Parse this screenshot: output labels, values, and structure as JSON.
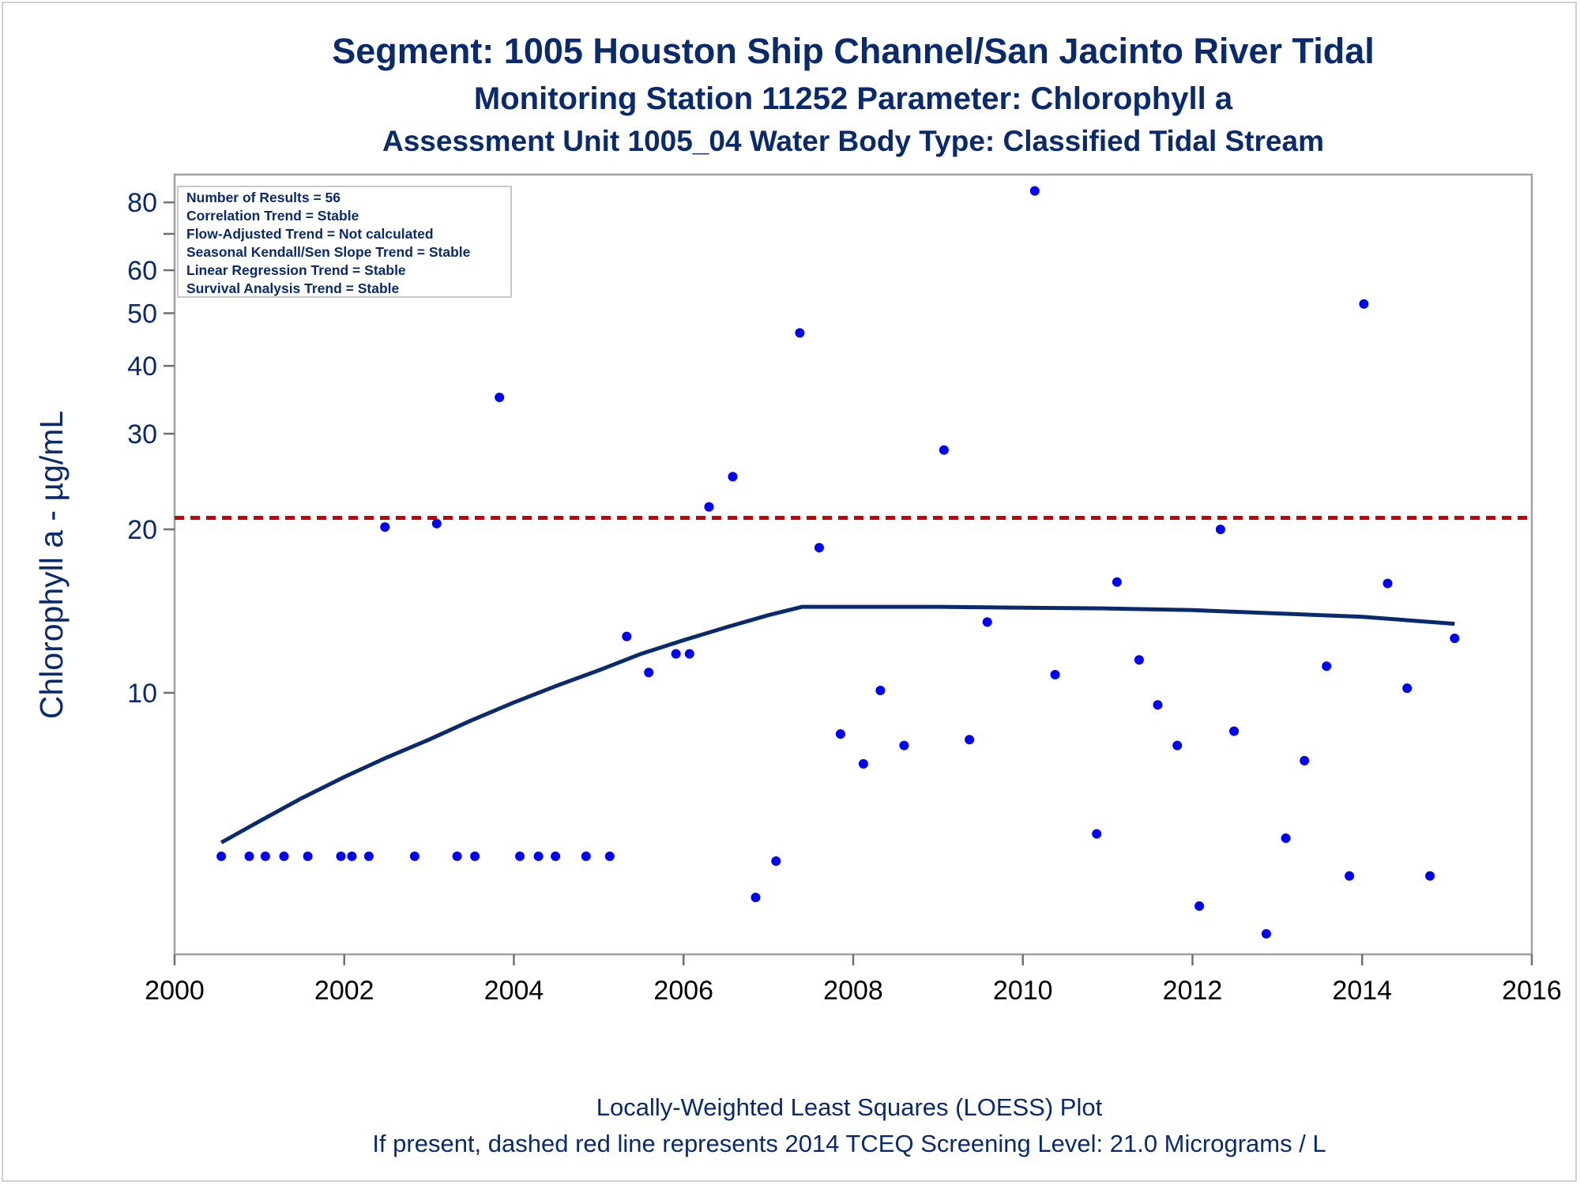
{
  "titles": {
    "line1": "Segment: 1005  Houston Ship Channel/San Jacinto River Tidal",
    "line2": "Monitoring Station 11252 Parameter: Chlorophyll a",
    "line3": "Assessment Unit 1005_04   Water Body Type: Classified Tidal Stream"
  },
  "inset": {
    "lines": [
      "Number of Results = 56",
      "Correlation Trend = Stable",
      "Flow-Adjusted Trend = Not calculated",
      "Seasonal Kendall/Sen Slope Trend = Stable",
      "Linear Regression Trend = Stable",
      "Survival Analysis Trend = Stable"
    ]
  },
  "footer": {
    "line1": "Locally-Weighted Least Squares (LOESS) Plot",
    "line2": "If present, dashed red line represents 2014 TCEQ Screening Level: 21.0 Micrograms / L"
  },
  "colors": {
    "points": "#0000ff",
    "loess": "#0a2a6e",
    "screening": "#cc0000",
    "text": "#0a2a6e"
  },
  "chart_data": {
    "type": "scatter",
    "ylabel": "Chlorophyll a -  µg/mL",
    "xlabel": "",
    "yscale": "log",
    "xlim": [
      2000,
      2016
    ],
    "ylim": [
      3.3,
      90
    ],
    "x_ticks": [
      2000,
      2002,
      2004,
      2006,
      2008,
      2010,
      2012,
      2014,
      2016
    ],
    "y_ticks_labeled": [
      10,
      20,
      30,
      40,
      50,
      60,
      80
    ],
    "y_ticks_minor": [
      70
    ],
    "screening_level": 21.0,
    "points": [
      {
        "x": 2000.55,
        "y": 5.0
      },
      {
        "x": 2000.88,
        "y": 5.0
      },
      {
        "x": 2001.07,
        "y": 5.0
      },
      {
        "x": 2001.29,
        "y": 5.0
      },
      {
        "x": 2001.57,
        "y": 5.0
      },
      {
        "x": 2001.96,
        "y": 5.0
      },
      {
        "x": 2002.09,
        "y": 5.0
      },
      {
        "x": 2002.29,
        "y": 5.0
      },
      {
        "x": 2002.48,
        "y": 20.2
      },
      {
        "x": 2002.83,
        "y": 5.0
      },
      {
        "x": 2003.09,
        "y": 20.5
      },
      {
        "x": 2003.33,
        "y": 5.0
      },
      {
        "x": 2003.54,
        "y": 5.0
      },
      {
        "x": 2003.83,
        "y": 35.0
      },
      {
        "x": 2004.07,
        "y": 5.0
      },
      {
        "x": 2004.29,
        "y": 5.0
      },
      {
        "x": 2004.49,
        "y": 5.0
      },
      {
        "x": 2004.85,
        "y": 5.0
      },
      {
        "x": 2005.13,
        "y": 5.0
      },
      {
        "x": 2005.33,
        "y": 12.7
      },
      {
        "x": 2005.59,
        "y": 10.9
      },
      {
        "x": 2005.91,
        "y": 11.8
      },
      {
        "x": 2006.07,
        "y": 11.8
      },
      {
        "x": 2006.3,
        "y": 22.0
      },
      {
        "x": 2006.58,
        "y": 25.0
      },
      {
        "x": 2006.85,
        "y": 4.2
      },
      {
        "x": 2007.09,
        "y": 4.9
      },
      {
        "x": 2007.37,
        "y": 46.0
      },
      {
        "x": 2007.6,
        "y": 18.5
      },
      {
        "x": 2007.85,
        "y": 8.4
      },
      {
        "x": 2008.12,
        "y": 7.4
      },
      {
        "x": 2008.32,
        "y": 10.1
      },
      {
        "x": 2008.6,
        "y": 8.0
      },
      {
        "x": 2009.07,
        "y": 28.0
      },
      {
        "x": 2009.37,
        "y": 8.2
      },
      {
        "x": 2009.58,
        "y": 13.5
      },
      {
        "x": 2010.14,
        "y": 84.0
      },
      {
        "x": 2010.38,
        "y": 10.8
      },
      {
        "x": 2010.87,
        "y": 5.5
      },
      {
        "x": 2011.11,
        "y": 16.0
      },
      {
        "x": 2011.37,
        "y": 11.5
      },
      {
        "x": 2011.59,
        "y": 9.5
      },
      {
        "x": 2011.82,
        "y": 8.0
      },
      {
        "x": 2012.08,
        "y": 4.05
      },
      {
        "x": 2012.33,
        "y": 20.0
      },
      {
        "x": 2012.49,
        "y": 8.5
      },
      {
        "x": 2012.87,
        "y": 3.6
      },
      {
        "x": 2013.1,
        "y": 5.4
      },
      {
        "x": 2013.32,
        "y": 7.5
      },
      {
        "x": 2013.58,
        "y": 11.2
      },
      {
        "x": 2013.85,
        "y": 4.6
      },
      {
        "x": 2014.02,
        "y": 52.0
      },
      {
        "x": 2014.3,
        "y": 15.9
      },
      {
        "x": 2014.53,
        "y": 10.2
      },
      {
        "x": 2014.8,
        "y": 4.6
      },
      {
        "x": 2015.09,
        "y": 12.6
      }
    ],
    "loess": [
      {
        "x": 2000.55,
        "y": 5.3
      },
      {
        "x": 2001.0,
        "y": 5.8
      },
      {
        "x": 2001.5,
        "y": 6.4
      },
      {
        "x": 2002.0,
        "y": 7.0
      },
      {
        "x": 2002.5,
        "y": 7.6
      },
      {
        "x": 2003.0,
        "y": 8.2
      },
      {
        "x": 2003.5,
        "y": 8.9
      },
      {
        "x": 2004.0,
        "y": 9.6
      },
      {
        "x": 2004.5,
        "y": 10.3
      },
      {
        "x": 2005.0,
        "y": 11.0
      },
      {
        "x": 2005.5,
        "y": 11.8
      },
      {
        "x": 2006.0,
        "y": 12.5
      },
      {
        "x": 2006.5,
        "y": 13.2
      },
      {
        "x": 2007.0,
        "y": 13.9
      },
      {
        "x": 2007.4,
        "y": 14.4
      },
      {
        "x": 2008.0,
        "y": 14.4
      },
      {
        "x": 2009.0,
        "y": 14.4
      },
      {
        "x": 2010.0,
        "y": 14.35
      },
      {
        "x": 2011.0,
        "y": 14.3
      },
      {
        "x": 2012.0,
        "y": 14.2
      },
      {
        "x": 2013.0,
        "y": 14.0
      },
      {
        "x": 2014.0,
        "y": 13.8
      },
      {
        "x": 2015.09,
        "y": 13.4
      }
    ]
  }
}
